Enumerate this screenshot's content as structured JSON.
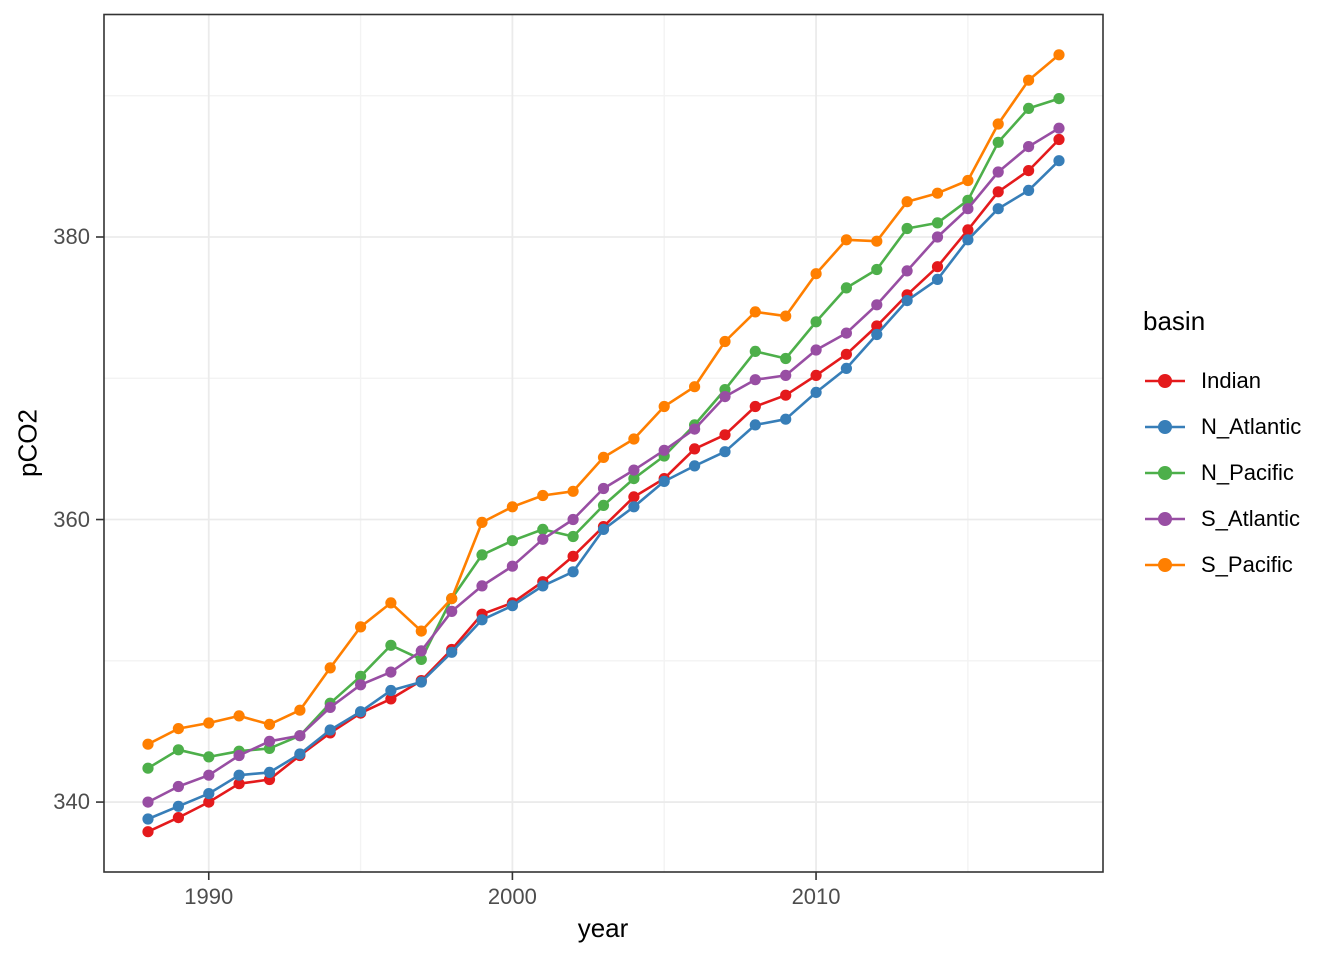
{
  "chart_data": {
    "type": "line",
    "title": "",
    "xlabel": "year",
    "ylabel": "pCO2",
    "legend_title": "basin",
    "legend_position": "right",
    "grid": "major+minor",
    "panel_border": true,
    "xlim": [
      1986.55,
      2019.45
    ],
    "ylim": [
      335.05,
      395.75
    ],
    "x_ticks_major": [
      1990,
      2000,
      2010
    ],
    "x_ticks_minor": [
      1995,
      2005,
      2015
    ],
    "y_ticks_major": [
      340,
      360,
      380
    ],
    "y_ticks_minor": [
      350,
      370,
      390
    ],
    "grid_major_color": "#ebebeb",
    "grid_minor_color": "#f3f3f3",
    "panel_border_color": "#333333",
    "tick_color": "#333333",
    "tick_label_color": "#4d4d4d",
    "years": [
      1988,
      1989,
      1990,
      1991,
      1992,
      1993,
      1994,
      1995,
      1996,
      1997,
      1998,
      1999,
      2000,
      2001,
      2002,
      2003,
      2004,
      2005,
      2006,
      2007,
      2008,
      2009,
      2010,
      2011,
      2012,
      2013,
      2014,
      2015,
      2016,
      2017,
      2018
    ],
    "series": [
      {
        "name": "Indian",
        "color": "#E41A1C",
        "values": [
          337.9,
          338.9,
          340.0,
          341.3,
          341.6,
          343.3,
          344.9,
          346.3,
          347.3,
          348.6,
          350.8,
          353.3,
          354.1,
          355.6,
          357.4,
          359.5,
          361.6,
          362.9,
          365.0,
          366.0,
          368.0,
          368.8,
          370.2,
          371.7,
          373.7,
          375.9,
          377.9,
          380.5,
          383.2,
          384.7,
          386.9
        ]
      },
      {
        "name": "N_Atlantic",
        "color": "#377EB8",
        "values": [
          338.8,
          339.7,
          340.6,
          341.9,
          342.1,
          343.4,
          345.1,
          346.4,
          347.9,
          348.5,
          350.6,
          352.9,
          353.9,
          355.3,
          356.3,
          359.3,
          360.9,
          362.7,
          363.8,
          364.8,
          366.7,
          367.1,
          369.0,
          370.7,
          373.1,
          375.5,
          377.0,
          379.8,
          382.0,
          383.3,
          385.4
        ]
      },
      {
        "name": "N_Pacific",
        "color": "#4DAF4A",
        "values": [
          342.4,
          343.7,
          343.2,
          343.6,
          343.8,
          344.7,
          347.0,
          348.9,
          351.1,
          350.1,
          354.4,
          357.5,
          358.5,
          359.3,
          358.8,
          361.0,
          362.9,
          364.5,
          366.7,
          369.2,
          371.9,
          371.4,
          374.0,
          376.4,
          377.7,
          380.6,
          381.0,
          382.6,
          386.7,
          389.1,
          389.8
        ]
      },
      {
        "name": "S_Atlantic",
        "color": "#984EA3",
        "values": [
          340.0,
          341.1,
          341.9,
          343.3,
          344.3,
          344.7,
          346.7,
          348.3,
          349.2,
          350.7,
          353.5,
          355.3,
          356.7,
          358.6,
          360.0,
          362.2,
          363.5,
          364.9,
          366.4,
          368.7,
          369.9,
          370.2,
          372.0,
          373.2,
          375.2,
          377.6,
          380.0,
          382.0,
          384.6,
          386.4,
          387.7
        ]
      },
      {
        "name": "S_Pacific",
        "color": "#FF7F00",
        "values": [
          344.1,
          345.2,
          345.6,
          346.1,
          345.5,
          346.5,
          349.5,
          352.4,
          354.1,
          352.1,
          354.4,
          359.8,
          360.9,
          361.7,
          362.0,
          364.4,
          365.7,
          368.0,
          369.4,
          372.6,
          374.7,
          374.4,
          377.4,
          379.8,
          379.7,
          382.5,
          383.1,
          384.0,
          388.0,
          391.1,
          392.9
        ]
      }
    ]
  }
}
